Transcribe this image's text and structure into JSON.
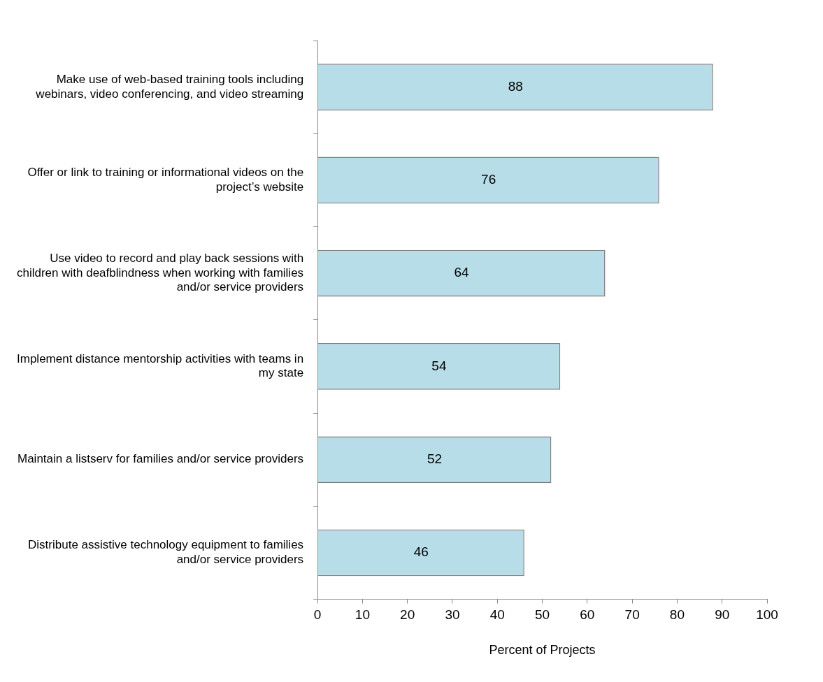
{
  "chart_data": {
    "type": "bar",
    "orientation": "horizontal",
    "xlabel": "Percent of Projects",
    "categories": [
      "Make use of web-based training tools including webinars, video conferencing, and video streaming",
      "Offer or link to training or informational videos on the project’s website",
      "Use video to record and play back sessions with children with deafblindness when working with families and/or service providers",
      "Implement distance mentorship activities with teams in my state",
      "Maintain a listserv for families and/or service providers",
      "Distribute assistive technology equipment to families and/or service providers"
    ],
    "values": [
      88,
      76,
      64,
      54,
      52,
      46
    ],
    "color": "#b7dde8",
    "xlim": [
      0,
      100
    ],
    "xticks": [
      0,
      10,
      20,
      30,
      40,
      50,
      60,
      70,
      80,
      90,
      100
    ],
    "grid": false,
    "legend": false,
    "data_labels": true
  }
}
